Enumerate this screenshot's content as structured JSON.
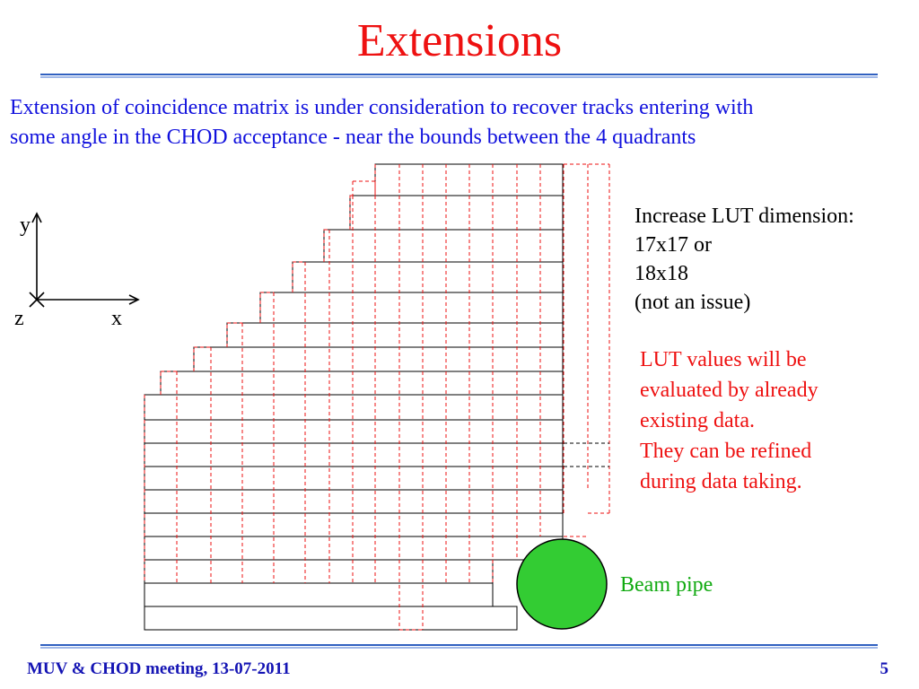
{
  "slide": {
    "title": "Extensions",
    "intro_lines": [
      "Extension of coincidence matrix is under consideration to recover tracks entering with",
      "some angle in the CHOD acceptance - near the bounds between the 4 quadrants"
    ],
    "lut_note_lines": [
      "Increase LUT dimension:",
      "17x17 or",
      "18x18",
      "(not an issue)"
    ],
    "lut_values_lines": [
      "LUT values will be",
      "evaluated by already",
      "existing data.",
      "They can be refined",
      "during data taking."
    ],
    "beam_pipe_label": "Beam pipe",
    "axes": {
      "y": "y",
      "z": "z",
      "x": "x"
    },
    "footer": {
      "left": "MUV & CHOD meeting, 13-07-2011",
      "page": "5"
    }
  },
  "colors": {
    "title": "#ee1111",
    "intro_text": "#1010dd",
    "note_text": "#ee1111",
    "beam_pipe_fill": "#33cc33",
    "beam_label": "#11aa11",
    "footer_text": "#1414b4",
    "rule_blue": "#3060c0",
    "rule_light": "#a0b8e8",
    "grid_existing": "#000000",
    "grid_extension": "#ee1111"
  }
}
